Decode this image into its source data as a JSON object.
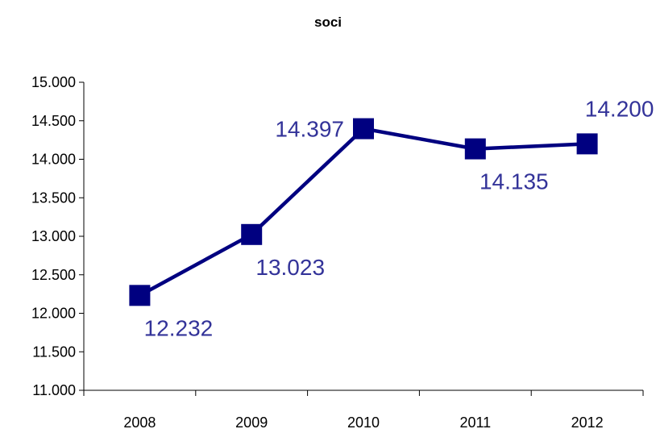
{
  "chart_data": {
    "type": "line",
    "title": "soci",
    "xlabel": "",
    "ylabel": "",
    "categories": [
      "2008",
      "2009",
      "2010",
      "2011",
      "2012"
    ],
    "series": [
      {
        "values": [
          12232,
          13023,
          14397,
          14135,
          14200
        ]
      }
    ],
    "data_labels": [
      "12.232",
      "13.023",
      "14.397",
      "14.135",
      "14.200"
    ],
    "ylim": [
      11000,
      15000
    ],
    "y_ticks": [
      11000,
      11500,
      12000,
      12500,
      13000,
      13500,
      14000,
      14500,
      15000
    ],
    "y_tick_labels": [
      "11.000",
      "11.500",
      "12.000",
      "12.500",
      "13.000",
      "13.500",
      "14.000",
      "14.500",
      "15.000"
    ],
    "grid": false,
    "legend": "none",
    "line_color": "#000080",
    "label_color": "#333399",
    "marker": "square"
  }
}
